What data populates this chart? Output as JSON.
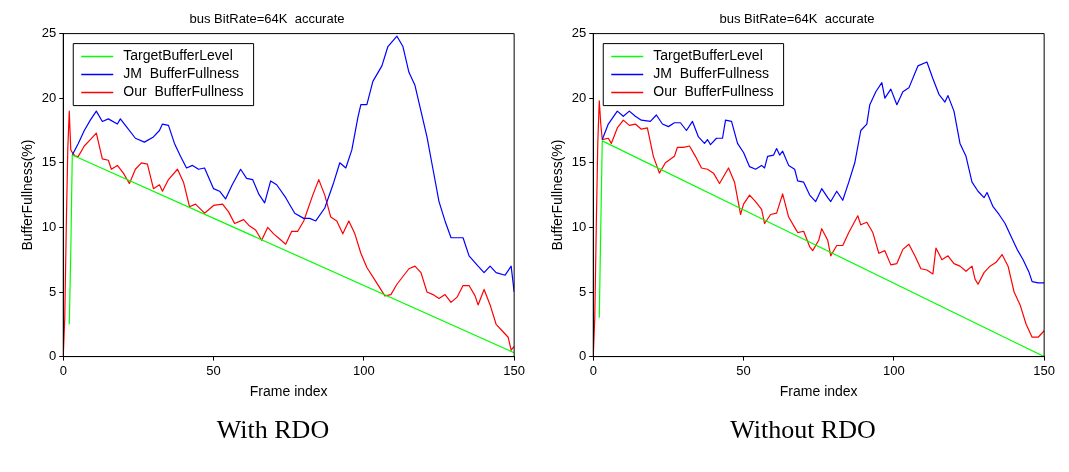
{
  "chart_data": [
    {
      "type": "line",
      "title": "bus BitRate=64K  accurate",
      "xlabel": "Frame index",
      "ylabel": "BufferFullness(%)",
      "annotations": [
        "With RDO"
      ],
      "xlim": [
        0,
        150
      ],
      "ylim": [
        0,
        25
      ],
      "xticks": [
        0,
        50,
        100,
        150
      ],
      "yticks": [
        0,
        5,
        10,
        15,
        20,
        25
      ],
      "legend": "top left",
      "series": [
        {
          "name": "TargetBufferLevel",
          "color": "#00ff00",
          "x": [
            2,
            2.5,
            3,
            150
          ],
          "values": [
            2.5,
            8,
            15.6,
            0.3
          ]
        },
        {
          "name": "JM  BufferFullness",
          "color": "#0000ff",
          "x": [
            3,
            5,
            7,
            9,
            11,
            13,
            15,
            18,
            19,
            21,
            24,
            27,
            30,
            32,
            33,
            35,
            37,
            39,
            41,
            43,
            45,
            47,
            50,
            52,
            54,
            56,
            59,
            61,
            63,
            65,
            67,
            69,
            71,
            74,
            77,
            80,
            82,
            84,
            87,
            90,
            92,
            94,
            96,
            98,
            99,
            101,
            103,
            106,
            108,
            111,
            113,
            115,
            117,
            119,
            121,
            123,
            125,
            127,
            129,
            131,
            133,
            135,
            138,
            140,
            142,
            144,
            147,
            149,
            150
          ],
          "values": [
            15.6,
            16.5,
            17.5,
            18.3,
            19,
            18.2,
            18.4,
            18,
            18.4,
            17.8,
            16.9,
            16.6,
            17,
            17.5,
            18,
            17.9,
            16.5,
            15.5,
            14.6,
            14.8,
            14.5,
            14.6,
            13,
            12.8,
            12.2,
            13.2,
            14.5,
            13.8,
            13.7,
            12.6,
            11.9,
            13.6,
            13.3,
            12.3,
            11.1,
            10.7,
            10.7,
            10.5,
            11.5,
            13.5,
            15,
            14.6,
            16,
            18.5,
            19.5,
            19.5,
            21.3,
            22.5,
            24,
            24.8,
            24,
            22,
            21,
            19,
            17,
            14.5,
            12,
            10.5,
            9.2,
            9.2,
            9.2,
            7.8,
            7,
            6.5,
            7,
            6.5,
            6.3,
            7,
            5
          ]
        },
        {
          "name": "Our  BufferFullness",
          "color": "#ff0000",
          "x": [
            0,
            0.5,
            1,
            1.5,
            2,
            2.5,
            3,
            4,
            5,
            7,
            9,
            11,
            13,
            15,
            16,
            18,
            20,
            22,
            24,
            26,
            28,
            30,
            32,
            33,
            35,
            38,
            40,
            42,
            44,
            47,
            50,
            53,
            55,
            57,
            60,
            62,
            64,
            66,
            68,
            70,
            72,
            74,
            76,
            78,
            80,
            83,
            85,
            87,
            89,
            91,
            93,
            95,
            97,
            99,
            101,
            104,
            107,
            109,
            111,
            113,
            115,
            117,
            119,
            121,
            123,
            125,
            127,
            129,
            131,
            133,
            135,
            137,
            138,
            140,
            142,
            144,
            146,
            148,
            149,
            150
          ],
          "values": [
            0,
            3,
            10,
            16,
            19,
            16,
            15.8,
            15.5,
            15.5,
            16.3,
            16.8,
            17.3,
            15.3,
            15.2,
            14.5,
            14.8,
            14.2,
            13.4,
            14.5,
            15,
            14.9,
            13,
            13.3,
            12.8,
            13.7,
            14.5,
            13.5,
            11.6,
            11.8,
            11.1,
            11.7,
            11.8,
            11.2,
            10.3,
            10.6,
            10.1,
            9.8,
            9,
            10,
            9.5,
            9.1,
            8.7,
            9.7,
            9.7,
            10.5,
            12.5,
            13.7,
            12.5,
            10.8,
            10.5,
            9.5,
            10.5,
            9.5,
            8,
            6.9,
            5.8,
            4.7,
            4.8,
            5.6,
            6.2,
            6.8,
            7,
            6.5,
            5,
            4.8,
            4.5,
            4.8,
            4.2,
            4.6,
            5.5,
            5.5,
            4.7,
            4,
            5.2,
            4,
            2.5,
            2,
            1.5,
            0.5,
            0.8
          ]
        }
      ]
    },
    {
      "type": "line",
      "title": "bus BitRate=64K  accurate",
      "xlabel": "Frame index",
      "ylabel": "BufferFullness(%)",
      "annotations": [
        "Without RDO"
      ],
      "xlim": [
        0,
        150
      ],
      "ylim": [
        0,
        25
      ],
      "xticks": [
        0,
        50,
        100,
        150
      ],
      "yticks": [
        0,
        5,
        10,
        15,
        20,
        25
      ],
      "legend": "top left",
      "series": [
        {
          "name": "TargetBufferLevel",
          "color": "#00ff00",
          "x": [
            2,
            2.5,
            3,
            150
          ],
          "values": [
            3,
            10,
            16.7,
            0
          ]
        },
        {
          "name": "JM  BufferFullness",
          "color": "#0000ff",
          "x": [
            3,
            5,
            8,
            10,
            12,
            14,
            16,
            19,
            21,
            23,
            25,
            27,
            29,
            31,
            33,
            35,
            37,
            38,
            39,
            41,
            43,
            44,
            46,
            48,
            50,
            52,
            54,
            56,
            57,
            58,
            60,
            61,
            62,
            63,
            65,
            67,
            68,
            70,
            72,
            74,
            76,
            78,
            79,
            81,
            83,
            85,
            87,
            89,
            91,
            92,
            94,
            96,
            97,
            99,
            101,
            103,
            105,
            108,
            111,
            113,
            115,
            117,
            118,
            120,
            122,
            124,
            126,
            128,
            130,
            131,
            133,
            135,
            137,
            139,
            141,
            143,
            145,
            146,
            148,
            150
          ],
          "values": [
            16.8,
            18,
            19,
            18.6,
            19,
            18.6,
            18.3,
            18.2,
            18.7,
            18,
            17.8,
            18.1,
            18.1,
            17.5,
            18.2,
            17,
            16.5,
            16.8,
            16.4,
            16.9,
            16.9,
            18.3,
            18.2,
            16.5,
            15.8,
            14.7,
            14.5,
            14.8,
            14.6,
            15.5,
            15.6,
            16.1,
            15.6,
            15.9,
            14.8,
            14.5,
            13.6,
            13.5,
            12.5,
            12,
            13,
            12.3,
            12,
            12.8,
            12.1,
            13.5,
            15,
            17.5,
            18,
            19.5,
            20.5,
            21.2,
            20,
            20.7,
            19.5,
            20.5,
            20.8,
            22.5,
            22.8,
            21.5,
            20.3,
            19.7,
            20.2,
            19,
            16.5,
            15.5,
            13.5,
            12.8,
            12.3,
            12.7,
            11.6,
            11,
            10.3,
            9.3,
            8.3,
            7.5,
            6.5,
            5.8,
            5.7,
            5.7
          ]
        },
        {
          "name": "Our  BufferFullness",
          "color": "#ff0000",
          "x": [
            0,
            0.5,
            1,
            1.5,
            2,
            2.5,
            3,
            5,
            6,
            8,
            10,
            12,
            14,
            16,
            18,
            20,
            22,
            24,
            27,
            28,
            30,
            32,
            34,
            36,
            38,
            40,
            42,
            45,
            47,
            49,
            50,
            52,
            54,
            56,
            57,
            59,
            61,
            63,
            65,
            67,
            68,
            70,
            72,
            73,
            75,
            76,
            78,
            79,
            81,
            83,
            85,
            88,
            89,
            91,
            93,
            95,
            97,
            99,
            101,
            103,
            105,
            107,
            109,
            111,
            113,
            114,
            116,
            118,
            120,
            122,
            124,
            126,
            127,
            128,
            130,
            132,
            134,
            136,
            138,
            140,
            142,
            144,
            146,
            148,
            150
          ],
          "values": [
            0,
            3,
            10,
            16.5,
            19.8,
            18,
            16.8,
            16.9,
            16.5,
            17.7,
            18.3,
            17.9,
            18,
            17.6,
            17.7,
            15.5,
            14.2,
            15,
            15.5,
            16.2,
            16.2,
            16.3,
            15.5,
            14.6,
            14.5,
            14.2,
            13.4,
            14.6,
            13.5,
            11,
            11.8,
            12.5,
            12,
            11.4,
            10.3,
            11,
            11.1,
            12.6,
            10.8,
            10,
            9.6,
            9.7,
            8.5,
            8.2,
            9,
            9.9,
            9,
            7.8,
            8.6,
            8.6,
            9.6,
            10.9,
            10.2,
            10.4,
            9.6,
            8,
            8.2,
            7.1,
            7.2,
            8.3,
            8.7,
            7.8,
            6.8,
            6.7,
            6.4,
            8.4,
            7.5,
            7.8,
            7.2,
            7,
            6.6,
            7,
            6,
            5.6,
            6.5,
            7,
            7.3,
            7.9,
            7,
            5,
            4,
            2.5,
            1.5,
            1.5,
            2
          ]
        }
      ]
    }
  ]
}
